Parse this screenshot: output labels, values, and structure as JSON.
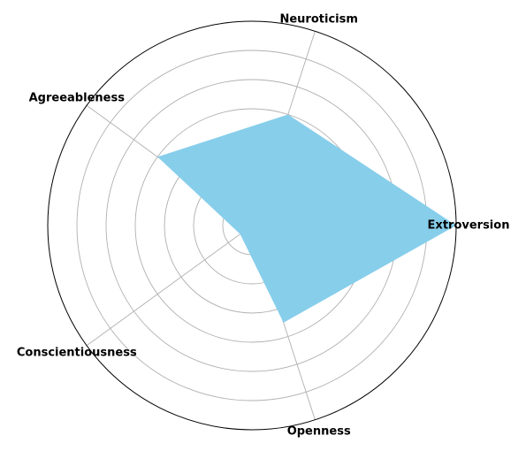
{
  "chart_data": {
    "type": "radar",
    "title": "",
    "categories": [
      "Extroversion",
      "Neuroticism",
      "Agreeableness",
      "Conscientiousness",
      "Openness"
    ],
    "series": [
      {
        "values": [
          7,
          4,
          4,
          0.5,
          3.5
        ]
      }
    ],
    "rlim": [
      0,
      7
    ],
    "r_gridlines": [
      1,
      2,
      3,
      4,
      5,
      6,
      7
    ],
    "r_ticklabels_visible": false,
    "grid": true,
    "fill_color": "#87ceeb",
    "grid_color": "#b0b0b0",
    "frame_color": "#000000"
  }
}
